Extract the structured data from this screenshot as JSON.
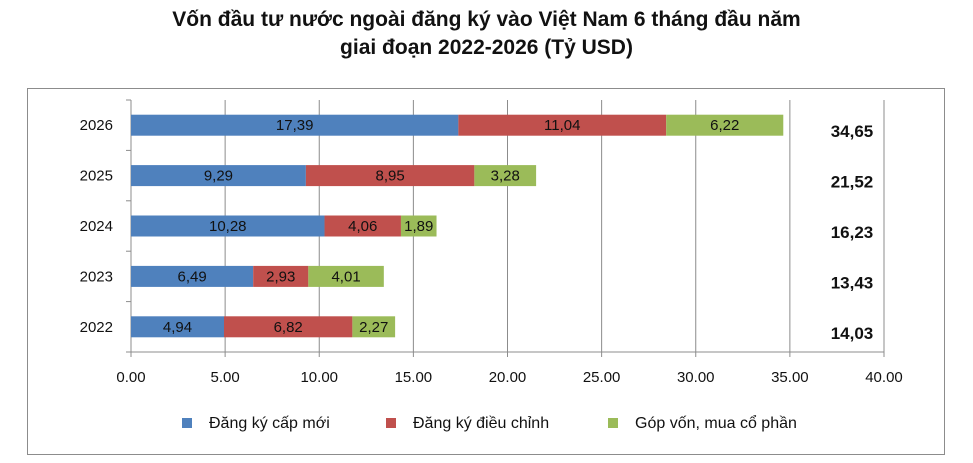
{
  "chart_data": {
    "type": "bar",
    "orientation": "horizontal",
    "stacked": true,
    "title_lines": [
      "Vốn đầu tư nước ngoài đăng ký vào Việt Nam 6 tháng đầu năm",
      "giai đoạn 2022-2026 (Tỷ USD)"
    ],
    "categories": [
      "2026",
      "2025",
      "2024",
      "2023",
      "2022"
    ],
    "series": [
      {
        "name": "Đăng ký cấp mới",
        "color": "#4F81BD",
        "values": [
          17.39,
          9.29,
          10.28,
          6.49,
          4.94
        ],
        "labels": [
          "17,39",
          "9,29",
          "10,28",
          "6,49",
          "4,94"
        ]
      },
      {
        "name": "Đăng ký điều chỉnh",
        "color": "#C0504D",
        "values": [
          11.04,
          8.95,
          4.06,
          2.93,
          6.82
        ],
        "labels": [
          "11,04",
          "8,95",
          "4,06",
          "2,93",
          "6,82"
        ]
      },
      {
        "name": "Góp vốn, mua cổ phần",
        "color": "#9BBB59",
        "values": [
          6.22,
          3.28,
          1.89,
          4.01,
          2.27
        ],
        "labels": [
          "6,22",
          "3,28",
          "1,89",
          "4,01",
          "2,27"
        ]
      }
    ],
    "totals": [
      34.65,
      21.52,
      16.23,
      13.43,
      14.03
    ],
    "total_labels": [
      "34,65",
      "21,52",
      "16,23",
      "13,43",
      "14,03"
    ],
    "xlim": [
      0,
      40
    ],
    "xticks": [
      0,
      5,
      10,
      15,
      20,
      25,
      30,
      35,
      40
    ],
    "xtick_labels": [
      "0.00",
      "5.00",
      "10.00",
      "15.00",
      "20.00",
      "25.00",
      "30.00",
      "35.00",
      "40.00"
    ],
    "grid": "vertical",
    "legend_position": "bottom"
  }
}
